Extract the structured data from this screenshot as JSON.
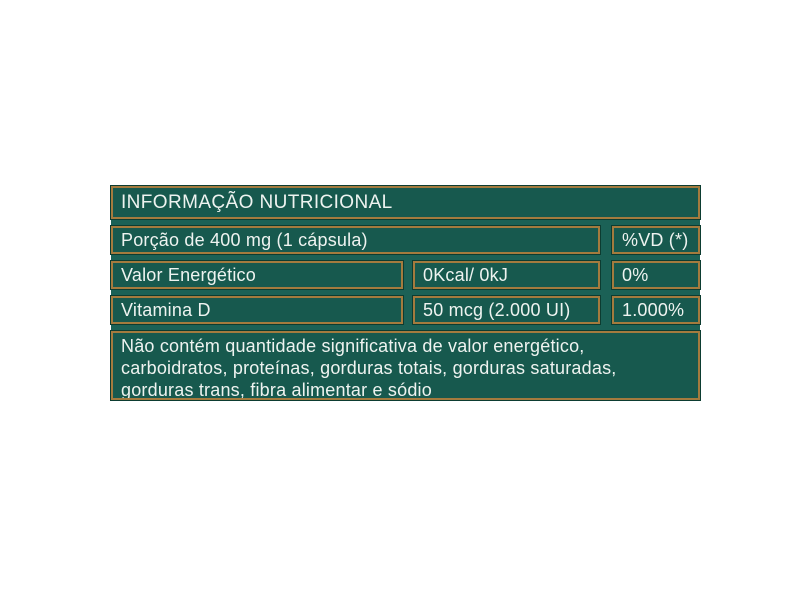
{
  "table": {
    "colors": {
      "cell_bg": "#17594e",
      "gap_bg": "#1b6156",
      "border_gold": "#a47b3e",
      "dark_rim": "#0c3c31",
      "text": "#eef3f0",
      "page_bg": "#ffffff"
    },
    "header": "INFORMAÇÃO NUTRICIONAL",
    "portion": {
      "label": "Porção de 400 mg (1 cápsula)",
      "dv_header": "%VD (*)"
    },
    "rows": [
      {
        "name": "Valor Energético",
        "amount": "0Kcal/ 0kJ",
        "dv": "0%"
      },
      {
        "name": "Vitamina D",
        "amount": "50 mcg (2.000 UI)",
        "dv": "1.000%"
      }
    ],
    "note_lines": [
      "Não contém quantidade significativa de valor energético,",
      "carboidratos, proteínas, gorduras totais, gorduras saturadas,",
      "gorduras trans, fibra alimentar e sódio"
    ]
  }
}
